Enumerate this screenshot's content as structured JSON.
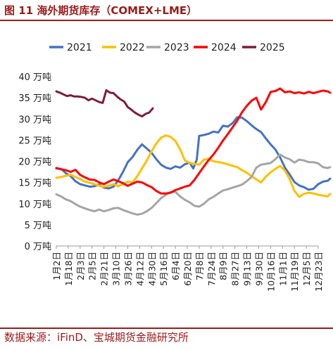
{
  "header": {
    "title": "图 11  海外期货库存（COMEX+LME）"
  },
  "footer": {
    "source": "数据来源：iFinD、宝城期货金融研究所"
  },
  "colors": {
    "theme": "#9b1b1b",
    "2021": "#4472c4",
    "2022": "#ffc000",
    "2023": "#a5a5a5",
    "2024": "#ff0000",
    "2025": "#7b1e3c"
  },
  "chart_data": {
    "type": "line",
    "title": "",
    "xlabel": "",
    "ylabel": "",
    "ylim": [
      0,
      40
    ],
    "yticks": [
      0,
      5,
      10,
      15,
      20,
      25,
      30,
      35,
      40
    ],
    "ytick_labels": [
      "0 万吨",
      "5 万吨",
      "10 万吨",
      "15 万吨",
      "20 万吨",
      "25 万吨",
      "30 万吨",
      "35 万吨",
      "40 万吨"
    ],
    "x_tick_labels": [
      "1月2日",
      "1月18日",
      "2月3日",
      "2月5日",
      "2月21日",
      "3月10日",
      "3月26日",
      "4月12日",
      "4月30日",
      "5月16日",
      "6月4日",
      "6月20日",
      "7月8日",
      "7月24日",
      "8月9日",
      "8月27日",
      "9月13日",
      "9月30日",
      "10月16日",
      "11月1日",
      "11月19日",
      "12月5日",
      "12月23日"
    ],
    "grid": false,
    "legend_position": "top",
    "series": [
      {
        "name": "2021",
        "color": "#4472c4",
        "values": [
          [
            0,
            18.3
          ],
          [
            0.4,
            18.2
          ],
          [
            0.8,
            17.2
          ],
          [
            1.2,
            16.5
          ],
          [
            1.6,
            15.3
          ],
          [
            2.0,
            14.6
          ],
          [
            2.4,
            14.3
          ],
          [
            2.8,
            14.0
          ],
          [
            3.2,
            14.1
          ],
          [
            3.6,
            14.5
          ],
          [
            4.0,
            13.8
          ],
          [
            4.4,
            13.6
          ],
          [
            4.8,
            14.0
          ],
          [
            5.2,
            15.5
          ],
          [
            5.6,
            17.5
          ],
          [
            6.0,
            19.8
          ],
          [
            6.4,
            21.0
          ],
          [
            6.8,
            22.7
          ],
          [
            7.2,
            24.0
          ],
          [
            7.6,
            23.0
          ],
          [
            8.0,
            22.0
          ],
          [
            8.4,
            20.5
          ],
          [
            8.8,
            19.2
          ],
          [
            9.2,
            18.5
          ],
          [
            9.6,
            18.2
          ],
          [
            10.0,
            18.8
          ],
          [
            10.4,
            18.5
          ],
          [
            10.8,
            19.3
          ],
          [
            11.2,
            19.7
          ],
          [
            11.5,
            18.3
          ],
          [
            11.8,
            20.4
          ],
          [
            12.0,
            26.0
          ],
          [
            12.4,
            26.2
          ],
          [
            12.8,
            26.5
          ],
          [
            13.2,
            27.0
          ],
          [
            13.6,
            26.8
          ],
          [
            14.0,
            28.4
          ],
          [
            14.4,
            28.2
          ],
          [
            14.8,
            29.0
          ],
          [
            15.2,
            30.4
          ],
          [
            15.6,
            30.3
          ],
          [
            16.0,
            29.5
          ],
          [
            16.4,
            28.5
          ],
          [
            16.8,
            27.6
          ],
          [
            17.2,
            26.9
          ],
          [
            17.6,
            25.4
          ],
          [
            18.0,
            24.0
          ],
          [
            18.4,
            22.8
          ],
          [
            18.8,
            20.9
          ],
          [
            19.2,
            18.5
          ],
          [
            19.6,
            16.9
          ],
          [
            20.0,
            15.1
          ],
          [
            20.4,
            14.3
          ],
          [
            20.8,
            13.9
          ],
          [
            21.2,
            13.3
          ],
          [
            21.6,
            13.5
          ],
          [
            22.0,
            14.6
          ],
          [
            22.4,
            15.2
          ],
          [
            22.8,
            15.4
          ],
          [
            23.0,
            15.9
          ]
        ]
      },
      {
        "name": "2022",
        "color": "#ffc000",
        "values": [
          [
            0,
            16.1
          ],
          [
            0.4,
            16.3
          ],
          [
            0.8,
            16.6
          ],
          [
            1.2,
            16.8
          ],
          [
            1.6,
            16.3
          ],
          [
            2.0,
            15.8
          ],
          [
            2.4,
            15.2
          ],
          [
            2.8,
            14.9
          ],
          [
            3.2,
            14.6
          ],
          [
            3.6,
            14.2
          ],
          [
            4.0,
            14.0
          ],
          [
            4.4,
            14.2
          ],
          [
            4.8,
            14.6
          ],
          [
            5.2,
            14.1
          ],
          [
            5.6,
            14.6
          ],
          [
            6.0,
            15.2
          ],
          [
            6.4,
            15.0
          ],
          [
            6.8,
            16.5
          ],
          [
            7.2,
            18.3
          ],
          [
            7.6,
            20.2
          ],
          [
            8.0,
            22.4
          ],
          [
            8.4,
            24.2
          ],
          [
            8.8,
            25.6
          ],
          [
            9.2,
            26.1
          ],
          [
            9.6,
            25.8
          ],
          [
            10.0,
            24.8
          ],
          [
            10.4,
            22.8
          ],
          [
            10.8,
            20.2
          ],
          [
            11.2,
            19.6
          ],
          [
            11.6,
            19.4
          ],
          [
            12.0,
            19.2
          ],
          [
            12.4,
            20.4
          ],
          [
            12.8,
            20.6
          ],
          [
            13.2,
            20.0
          ],
          [
            13.6,
            19.8
          ],
          [
            14.0,
            19.6
          ],
          [
            14.4,
            19.3
          ],
          [
            14.8,
            18.9
          ],
          [
            15.2,
            18.6
          ],
          [
            15.6,
            17.9
          ],
          [
            16.0,
            17.3
          ],
          [
            16.4,
            16.5
          ],
          [
            16.8,
            15.7
          ],
          [
            17.2,
            15.0
          ],
          [
            17.6,
            16.4
          ],
          [
            18.0,
            17.4
          ],
          [
            18.4,
            18.2
          ],
          [
            18.8,
            18.9
          ],
          [
            19.2,
            17.8
          ],
          [
            19.6,
            15.8
          ],
          [
            20.0,
            13.0
          ],
          [
            20.4,
            11.6
          ],
          [
            20.8,
            12.3
          ],
          [
            21.2,
            12.6
          ],
          [
            21.6,
            12.4
          ],
          [
            22.0,
            12.1
          ],
          [
            22.4,
            11.9
          ],
          [
            22.8,
            11.7
          ],
          [
            23.0,
            12.3
          ]
        ]
      },
      {
        "name": "2023",
        "color": "#a5a5a5",
        "values": [
          [
            0,
            12.2
          ],
          [
            0.4,
            11.7
          ],
          [
            0.8,
            11.0
          ],
          [
            1.2,
            10.6
          ],
          [
            1.6,
            9.9
          ],
          [
            2.0,
            9.3
          ],
          [
            2.4,
            8.9
          ],
          [
            2.8,
            8.5
          ],
          [
            3.2,
            8.2
          ],
          [
            3.6,
            8.6
          ],
          [
            4.0,
            8.2
          ],
          [
            4.4,
            8.5
          ],
          [
            4.8,
            8.9
          ],
          [
            5.2,
            9.0
          ],
          [
            5.6,
            8.5
          ],
          [
            6.0,
            8.1
          ],
          [
            6.4,
            7.7
          ],
          [
            6.8,
            7.4
          ],
          [
            7.2,
            7.6
          ],
          [
            7.6,
            8.2
          ],
          [
            8.0,
            9.0
          ],
          [
            8.4,
            10.1
          ],
          [
            8.8,
            11.3
          ],
          [
            9.2,
            12.1
          ],
          [
            9.6,
            12.7
          ],
          [
            10.0,
            12.8
          ],
          [
            10.4,
            11.7
          ],
          [
            10.8,
            10.9
          ],
          [
            11.2,
            10.3
          ],
          [
            11.6,
            9.5
          ],
          [
            12.0,
            9.3
          ],
          [
            12.4,
            10.0
          ],
          [
            12.8,
            11.0
          ],
          [
            13.2,
            11.6
          ],
          [
            13.6,
            12.4
          ],
          [
            14.0,
            13.1
          ],
          [
            14.4,
            13.4
          ],
          [
            14.8,
            13.8
          ],
          [
            15.2,
            14.1
          ],
          [
            15.6,
            14.5
          ],
          [
            16.0,
            15.3
          ],
          [
            16.4,
            16.3
          ],
          [
            16.8,
            18.5
          ],
          [
            17.2,
            19.2
          ],
          [
            17.6,
            19.4
          ],
          [
            18.0,
            19.6
          ],
          [
            18.4,
            20.5
          ],
          [
            18.8,
            21.6
          ],
          [
            19.2,
            20.9
          ],
          [
            19.6,
            20.5
          ],
          [
            20.0,
            19.7
          ],
          [
            20.4,
            20.4
          ],
          [
            20.8,
            20.2
          ],
          [
            21.2,
            19.8
          ],
          [
            21.6,
            19.8
          ],
          [
            22.0,
            19.5
          ],
          [
            22.4,
            18.6
          ],
          [
            22.8,
            18.4
          ],
          [
            23.0,
            18.6
          ]
        ]
      },
      {
        "name": "2024",
        "color": "#ff0000",
        "values": [
          [
            0,
            18.4
          ],
          [
            0.4,
            18.1
          ],
          [
            0.8,
            17.9
          ],
          [
            1.2,
            17.5
          ],
          [
            1.6,
            18.0
          ],
          [
            2.0,
            16.8
          ],
          [
            2.4,
            16.2
          ],
          [
            2.8,
            15.7
          ],
          [
            3.2,
            15.6
          ],
          [
            3.6,
            15.0
          ],
          [
            4.0,
            14.6
          ],
          [
            4.4,
            15.2
          ],
          [
            4.8,
            15.7
          ],
          [
            5.2,
            15.3
          ],
          [
            5.6,
            14.8
          ],
          [
            6.0,
            14.2
          ],
          [
            6.4,
            14.7
          ],
          [
            6.8,
            15.2
          ],
          [
            7.2,
            15.0
          ],
          [
            7.6,
            14.4
          ],
          [
            8.0,
            13.9
          ],
          [
            8.4,
            13.0
          ],
          [
            8.8,
            12.4
          ],
          [
            9.2,
            12.4
          ],
          [
            9.6,
            12.6
          ],
          [
            10.0,
            13.2
          ],
          [
            10.4,
            13.6
          ],
          [
            10.8,
            14.0
          ],
          [
            11.2,
            14.3
          ],
          [
            11.6,
            15.6
          ],
          [
            12.0,
            17.2
          ],
          [
            12.4,
            18.8
          ],
          [
            12.8,
            20.3
          ],
          [
            13.2,
            21.6
          ],
          [
            13.6,
            23.2
          ],
          [
            14.0,
            24.9
          ],
          [
            14.4,
            26.4
          ],
          [
            14.8,
            28.0
          ],
          [
            15.2,
            29.6
          ],
          [
            15.6,
            31.6
          ],
          [
            16.0,
            33.1
          ],
          [
            16.4,
            34.3
          ],
          [
            16.8,
            35.0
          ],
          [
            17.2,
            32.2
          ],
          [
            17.6,
            34.0
          ],
          [
            18.0,
            36.4
          ],
          [
            18.4,
            36.6
          ],
          [
            18.8,
            37.2
          ],
          [
            19.2,
            36.3
          ],
          [
            19.6,
            36.5
          ],
          [
            20.0,
            36.1
          ],
          [
            20.4,
            36.3
          ],
          [
            20.8,
            36.0
          ],
          [
            21.2,
            36.4
          ],
          [
            21.6,
            36.1
          ],
          [
            22.0,
            36.4
          ],
          [
            22.4,
            36.7
          ],
          [
            22.8,
            36.5
          ],
          [
            23.0,
            36.2
          ]
        ]
      },
      {
        "name": "2025",
        "color": "#7b1e3c",
        "values": [
          [
            0,
            36.5
          ],
          [
            0.3,
            36.2
          ],
          [
            0.6,
            35.8
          ],
          [
            0.9,
            35.4
          ],
          [
            1.2,
            35.6
          ],
          [
            1.5,
            35.3
          ],
          [
            1.8,
            35.3
          ],
          [
            2.1,
            35.2
          ],
          [
            2.4,
            35.0
          ],
          [
            2.7,
            34.4
          ],
          [
            3.0,
            34.8
          ],
          [
            3.3,
            34.4
          ],
          [
            3.6,
            34.0
          ],
          [
            3.9,
            33.8
          ],
          [
            4.2,
            36.8
          ],
          [
            4.5,
            36.2
          ],
          [
            4.8,
            36.1
          ],
          [
            5.1,
            35.3
          ],
          [
            5.4,
            34.6
          ],
          [
            5.7,
            34.1
          ],
          [
            6.0,
            32.8
          ],
          [
            6.3,
            32.2
          ],
          [
            6.6,
            31.5
          ],
          [
            6.9,
            31.0
          ],
          [
            7.2,
            30.6
          ],
          [
            7.5,
            31.2
          ],
          [
            7.8,
            31.5
          ],
          [
            8.1,
            32.5
          ]
        ]
      }
    ]
  }
}
